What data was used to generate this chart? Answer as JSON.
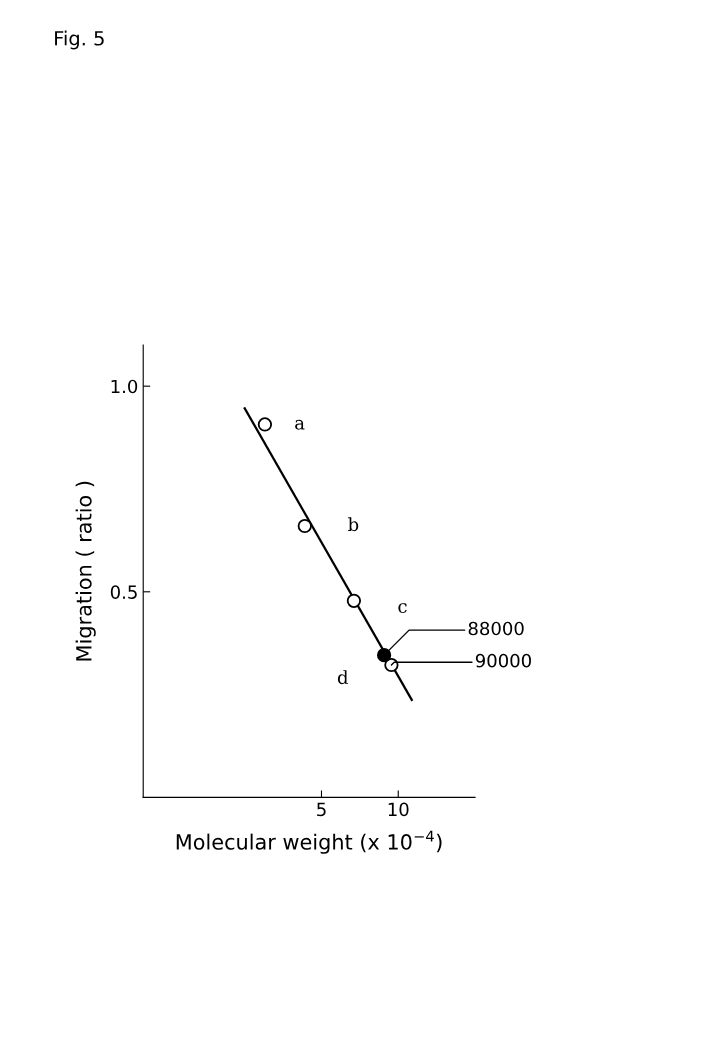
{
  "chart_data": {
    "type": "scatter",
    "title": "Fig. 5",
    "xlabel": "Molecular weight (x 10$^{−4}$)",
    "ylabel": "Migration ( ratio )",
    "log": "x",
    "xlim": [
      1,
      20
    ],
    "xticks": [
      5,
      10
    ],
    "ylim": [
      0,
      1.1
    ],
    "yticks": [
      {
        "value": 0.5,
        "label": "0.5"
      },
      {
        "value": 1.0,
        "label": "1.0"
      }
    ],
    "marker": "circle",
    "grid": false,
    "legend": false,
    "series": [
      {
        "type": "line",
        "marker": "none",
        "color": "#000000",
        "x": [
          2.5,
          11.3
        ],
        "values": [
          0.946,
          0.237
        ]
      },
      {
        "color": "#ffffff",
        "x": [
          3.0,
          4.3,
          6.7,
          9.4
        ],
        "values": [
          0.907,
          0.66,
          0.478,
          0.322
        ]
      },
      {
        "color": "#000000",
        "x": [
          8.8
        ],
        "values": [
          0.346
        ]
      }
    ],
    "annotations": [
      {
        "text": "a",
        "x": 3.0,
        "y": 0.907
      },
      {
        "text": "b",
        "x": 4.3,
        "y": 0.66
      },
      {
        "text": "c",
        "x": 6.7,
        "y": 0.478
      },
      {
        "text": "d",
        "x": 9.4,
        "y": 0.322
      },
      {
        "text": "88000",
        "x": 8.8,
        "y": 0.346
      },
      "90000"
    ]
  }
}
